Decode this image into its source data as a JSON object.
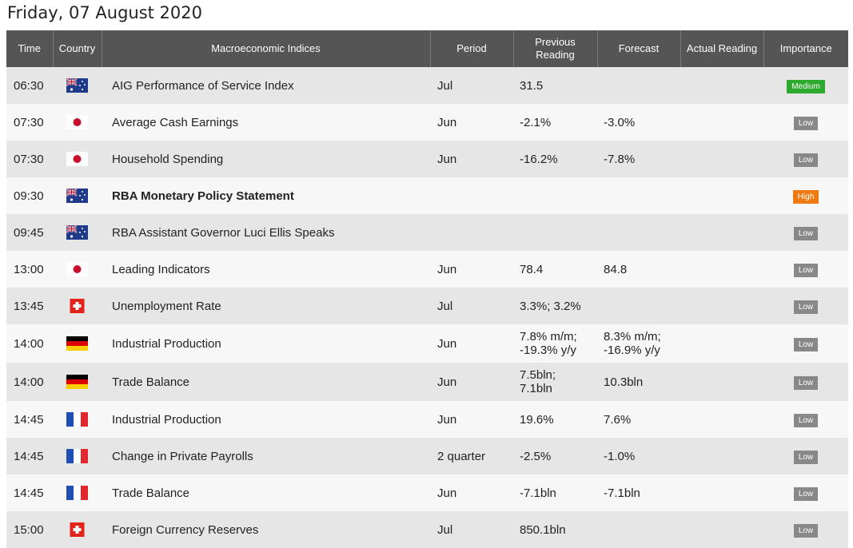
{
  "page": {
    "title": "Friday, 07 August 2020"
  },
  "headers": {
    "time": "Time",
    "country": "Country",
    "indices": "Macroeconomic Indices",
    "period": "Period",
    "previous_line1": "Previous",
    "previous_line2": "Reading",
    "forecast": "Forecast",
    "actual": "Actual Reading",
    "importance": "Importance"
  },
  "colors": {
    "header_bg": "#555555",
    "row_odd": "#e6e6e6",
    "row_even": "#f7f7f7",
    "low": "#888888",
    "medium": "#2eaa2e",
    "high": "#f07a12"
  },
  "rows": [
    {
      "time": "06:30",
      "flag": "australia-flag-icon",
      "name": "AIG Performance of Service Index",
      "bold": false,
      "period": "Jul",
      "prev1": "31.5",
      "prev2": "",
      "fc1": "",
      "fc2": "",
      "actual": "",
      "importance": "Medium"
    },
    {
      "time": "07:30",
      "flag": "japan-flag-icon",
      "name": "Average Cash Earnings",
      "bold": false,
      "period": "Jun",
      "prev1": "-2.1%",
      "prev2": "",
      "fc1": "-3.0%",
      "fc2": "",
      "actual": "",
      "importance": "Low"
    },
    {
      "time": "07:30",
      "flag": "japan-flag-icon",
      "name": "Household Spending",
      "bold": false,
      "period": "Jun",
      "prev1": "-16.2%",
      "prev2": "",
      "fc1": "-7.8%",
      "fc2": "",
      "actual": "",
      "importance": "Low"
    },
    {
      "time": "09:30",
      "flag": "australia-flag-icon",
      "name": "RBA Monetary Policy Statement",
      "bold": true,
      "period": "",
      "prev1": "",
      "prev2": "",
      "fc1": "",
      "fc2": "",
      "actual": "",
      "importance": "High"
    },
    {
      "time": "09:45",
      "flag": "australia-flag-icon",
      "name": "RBA Assistant Governor Luci Ellis Speaks",
      "bold": false,
      "period": "",
      "prev1": "",
      "prev2": "",
      "fc1": "",
      "fc2": "",
      "actual": "",
      "importance": "Low"
    },
    {
      "time": "13:00",
      "flag": "japan-flag-icon",
      "name": "Leading Indicators",
      "bold": false,
      "period": "Jun",
      "prev1": "78.4",
      "prev2": "",
      "fc1": "84.8",
      "fc2": "",
      "actual": "",
      "importance": "Low"
    },
    {
      "time": "13:45",
      "flag": "switzerland-flag-icon",
      "name": "Unemployment Rate",
      "bold": false,
      "period": "Jul",
      "prev1": "3.3%; 3.2%",
      "prev2": "",
      "fc1": "",
      "fc2": "",
      "actual": "",
      "importance": "Low"
    },
    {
      "time": "14:00",
      "flag": "germany-flag-icon",
      "name": "Industrial Production",
      "bold": false,
      "period": "Jun",
      "prev1": "7.8% m/m;",
      "prev2": "-19.3% y/y",
      "fc1": "8.3% m/m;",
      "fc2": "-16.9% y/y",
      "actual": "",
      "importance": "Low"
    },
    {
      "time": "14:00",
      "flag": "germany-flag-icon",
      "name": "Trade Balance",
      "bold": false,
      "period": "Jun",
      "prev1": "7.5bln;",
      "prev2": "7.1bln",
      "fc1": "10.3bln",
      "fc2": "",
      "actual": "",
      "importance": "Low"
    },
    {
      "time": "14:45",
      "flag": "france-flag-icon",
      "name": "Industrial Production",
      "bold": false,
      "period": "Jun",
      "prev1": "19.6%",
      "prev2": "",
      "fc1": "7.6%",
      "fc2": "",
      "actual": "",
      "importance": "Low"
    },
    {
      "time": "14:45",
      "flag": "france-flag-icon",
      "name": "Change in Private Payrolls",
      "bold": false,
      "period": "2 quarter",
      "prev1": "-2.5%",
      "prev2": "",
      "fc1": "-1.0%",
      "fc2": "",
      "actual": "",
      "importance": "Low"
    },
    {
      "time": "14:45",
      "flag": "france-flag-icon",
      "name": "Trade Balance",
      "bold": false,
      "period": "Jun",
      "prev1": "-7.1bln",
      "prev2": "",
      "fc1": "-7.1bln",
      "fc2": "",
      "actual": "",
      "importance": "Low"
    },
    {
      "time": "15:00",
      "flag": "switzerland-flag-icon",
      "name": "Foreign Currency Reserves",
      "bold": false,
      "period": "Jul",
      "prev1": "850.1bln",
      "prev2": "",
      "fc1": "",
      "fc2": "",
      "actual": "",
      "importance": "Low"
    }
  ]
}
